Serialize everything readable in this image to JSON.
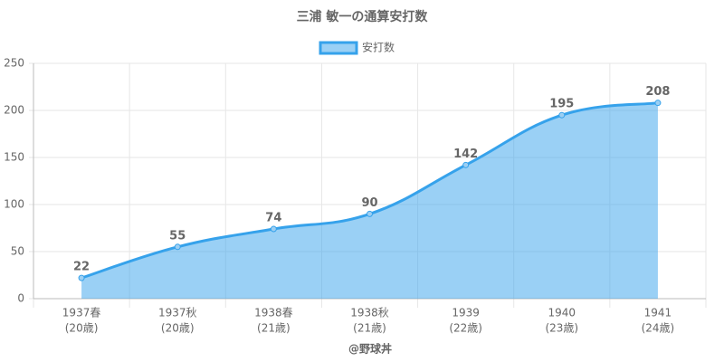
{
  "chart_data": {
    "type": "line",
    "title": "三浦 敏一の通算安打数",
    "x_label": "@野球丼",
    "categories": [
      [
        "1937春",
        "(20歳)"
      ],
      [
        "1937秋",
        "(20歳)"
      ],
      [
        "1938春",
        "(21歳)"
      ],
      [
        "1938秋",
        "(21歳)"
      ],
      [
        "1939",
        "(22歳)"
      ],
      [
        "1940",
        "(23歳)"
      ],
      [
        "1941",
        "(24歳)"
      ]
    ],
    "series": [
      {
        "name": "安打数",
        "color": "#36a2eb",
        "values": [
          22,
          55,
          74,
          90,
          142,
          195,
          208
        ]
      }
    ],
    "ylim": [
      0,
      250
    ],
    "yticks": [
      0,
      50,
      100,
      150,
      200,
      250
    ],
    "grid": true,
    "fill": true,
    "legend": "top"
  }
}
